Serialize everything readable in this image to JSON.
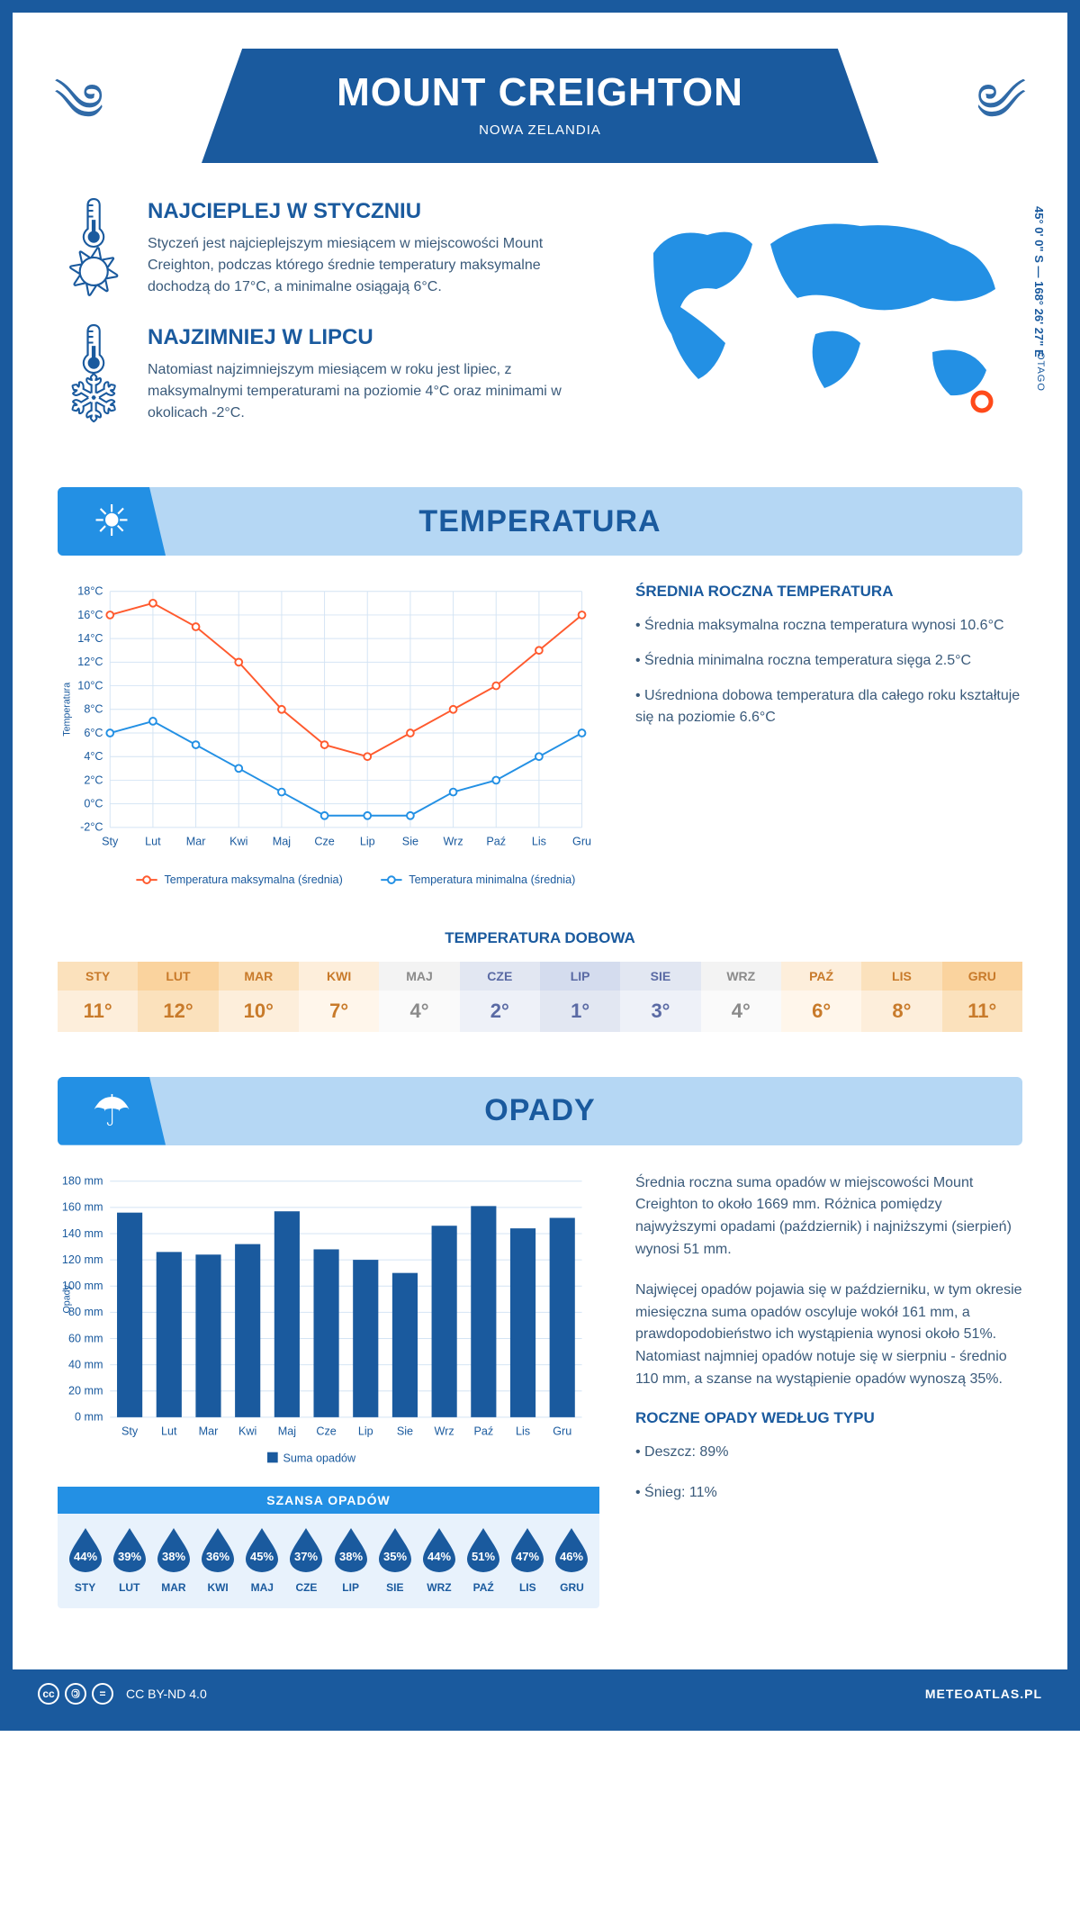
{
  "header": {
    "title": "MOUNT CREIGHTON",
    "subtitle": "NOWA ZELANDIA"
  },
  "coords": "45° 0' 0\" S — 168° 26' 27\" E",
  "region": "OTAGO",
  "warm": {
    "title": "NAJCIEPLEJ W STYCZNIU",
    "text": "Styczeń jest najcieplejszym miesiącem w miejscowości Mount Creighton, podczas którego średnie temperatury maksymalne dochodzą do 17°C, a minimalne osiągają 6°C."
  },
  "cold": {
    "title": "NAJZIMNIEJ W LIPCU",
    "text": "Natomiast najzimniejszym miesiącem w roku jest lipiec, z maksymalnymi temperaturami na poziomie 4°C oraz minimami w okolicach -2°C."
  },
  "temp_section": {
    "title": "TEMPERATURA"
  },
  "months": [
    "Sty",
    "Lut",
    "Mar",
    "Kwi",
    "Maj",
    "Cze",
    "Lip",
    "Sie",
    "Wrz",
    "Paź",
    "Lis",
    "Gru"
  ],
  "temp_chart": {
    "ylabel": "Temperatura",
    "ymin": -2,
    "ymax": 18,
    "ystep": 2,
    "yunit": "°C",
    "series": [
      {
        "name": "Temperatura maksymalna (średnia)",
        "color": "#ff5a2e",
        "values": [
          16,
          17,
          15,
          12,
          8,
          5,
          4,
          6,
          8,
          10,
          13,
          16
        ]
      },
      {
        "name": "Temperatura minimalna (średnia)",
        "color": "#2390e4",
        "values": [
          6,
          7,
          5,
          3,
          1,
          -1,
          -1,
          -1,
          1,
          2,
          4,
          6
        ]
      }
    ]
  },
  "temp_info": {
    "title": "ŚREDNIA ROCZNA TEMPERATURA",
    "lines": [
      "• Średnia maksymalna roczna temperatura wynosi 10.6°C",
      "• Średnia minimalna roczna temperatura sięga 2.5°C",
      "• Uśredniona dobowa temperatura dla całego roku kształtuje się na poziomie 6.6°C"
    ]
  },
  "daily_temp": {
    "title": "TEMPERATURA DOBOWA",
    "months_upper": [
      "STY",
      "LUT",
      "MAR",
      "KWI",
      "MAJ",
      "CZE",
      "LIP",
      "SIE",
      "WRZ",
      "PAŹ",
      "LIS",
      "GRU"
    ],
    "values": [
      "11°",
      "12°",
      "10°",
      "7°",
      "4°",
      "2°",
      "1°",
      "3°",
      "4°",
      "6°",
      "8°",
      "11°"
    ],
    "header_colors": [
      "#fbe1bc",
      "#fad39e",
      "#fbe1bc",
      "#fdeedb",
      "#f3f3f3",
      "#e2e7f2",
      "#d4dcee",
      "#e2e7f2",
      "#f3f3f3",
      "#fdeedb",
      "#fbe1bc",
      "#fad39e"
    ],
    "value_colors": [
      "#fdeedb",
      "#fbe1bc",
      "#fdeedb",
      "#fff6eb",
      "#fafafa",
      "#eef1f8",
      "#e2e7f2",
      "#eef1f8",
      "#fafafa",
      "#fff6eb",
      "#fdeedb",
      "#fbe1bc"
    ],
    "text_colors": [
      "#c87a2a",
      "#c87a2a",
      "#c87a2a",
      "#c87a2a",
      "#8a8a8a",
      "#5a6aa4",
      "#5a6aa4",
      "#5a6aa4",
      "#8a8a8a",
      "#c87a2a",
      "#c87a2a",
      "#c87a2a"
    ]
  },
  "precip_section": {
    "title": "OPADY"
  },
  "precip_chart": {
    "ylabel": "Opady",
    "ymin": 0,
    "ymax": 180,
    "ystep": 20,
    "yunit": " mm",
    "color": "#1a5a9e",
    "legend": "Suma opadów",
    "values": [
      156,
      126,
      124,
      132,
      157,
      128,
      120,
      110,
      146,
      161,
      144,
      152
    ]
  },
  "precip_info": {
    "p1": "Średnia roczna suma opadów w miejscowości Mount Creighton to około 1669 mm. Różnica pomiędzy najwyższymi opadami (październik) i najniższymi (sierpień) wynosi 51 mm.",
    "p2": "Najwięcej opadów pojawia się w październiku, w tym okresie miesięczna suma opadów oscyluje wokół 161 mm, a prawdopodobieństwo ich wystąpienia wynosi około 51%. Natomiast najmniej opadów notuje się w sierpniu - średnio 110 mm, a szanse na wystąpienie opadów wynoszą 35%.",
    "type_title": "ROCZNE OPADY WEDŁUG TYPU",
    "type_lines": [
      "• Deszcz: 89%",
      "• Śnieg: 11%"
    ]
  },
  "chance": {
    "title": "SZANSA OPADÓW",
    "months": [
      "STY",
      "LUT",
      "MAR",
      "KWI",
      "MAJ",
      "CZE",
      "LIP",
      "SIE",
      "WRZ",
      "PAŹ",
      "LIS",
      "GRU"
    ],
    "values": [
      "44%",
      "39%",
      "38%",
      "36%",
      "45%",
      "37%",
      "38%",
      "35%",
      "44%",
      "51%",
      "47%",
      "46%"
    ],
    "drop_color": "#1a5a9e"
  },
  "footer": {
    "license": "CC BY-ND 4.0",
    "brand": "METEOATLAS.PL"
  }
}
